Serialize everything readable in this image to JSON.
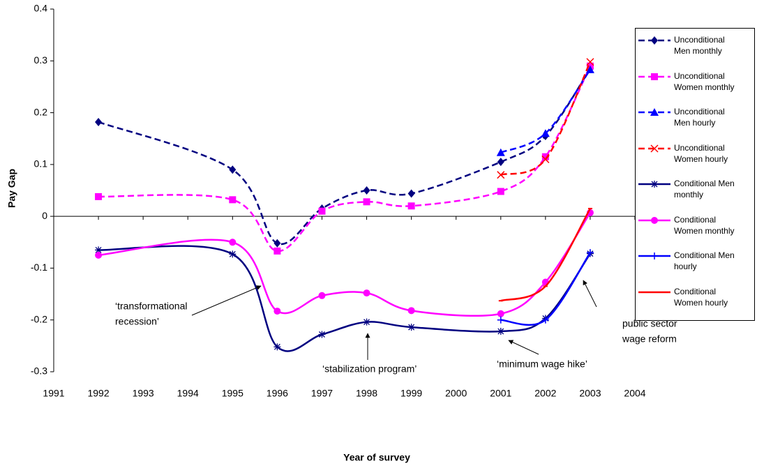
{
  "chart_data": {
    "type": "line",
    "x_label": "Year of survey",
    "y_label": "Pay Gap",
    "x": [
      1992,
      1995,
      1996,
      1997,
      1998,
      1999,
      2001,
      2002,
      2003
    ],
    "xlim": [
      1991,
      2004
    ],
    "xticks": [
      1991,
      1992,
      1993,
      1994,
      1995,
      1996,
      1997,
      1998,
      1999,
      2000,
      2001,
      2002,
      2003,
      2004
    ],
    "ylim": [
      -0.3,
      0.4
    ],
    "yticks": [
      0.4,
      0.3,
      0.2,
      0.1,
      0,
      -0.1,
      -0.2,
      -0.3
    ],
    "legend": "right",
    "smooth": true,
    "series": [
      {
        "name": "Unconditional Men monthly",
        "color": "#000080",
        "dashed": true,
        "marker": "diamond",
        "values": [
          0.182,
          0.09,
          -0.052,
          0.015,
          0.05,
          0.044,
          0.105,
          0.155,
          0.285
        ]
      },
      {
        "name": "Unconditional Women monthly",
        "color": "#ff00ff",
        "dashed": true,
        "marker": "square",
        "values": [
          0.038,
          0.032,
          -0.067,
          0.01,
          0.028,
          0.02,
          0.048,
          0.115,
          0.29
        ]
      },
      {
        "name": "Unconditional Men hourly",
        "color": "#0000ff",
        "dashed": true,
        "marker": "triangle",
        "values": [
          null,
          null,
          null,
          null,
          null,
          null,
          0.123,
          0.16,
          0.283
        ]
      },
      {
        "name": "Unconditional Women hourly",
        "color": "#ff0000",
        "dashed": true,
        "marker": "cross",
        "values": [
          null,
          null,
          null,
          null,
          null,
          null,
          0.08,
          0.11,
          0.298
        ]
      },
      {
        "name": "Conditional Men monthly",
        "color": "#000080",
        "dashed": false,
        "marker": "star",
        "values": [
          -0.065,
          -0.073,
          -0.252,
          -0.228,
          -0.204,
          -0.214,
          -0.222,
          -0.197,
          -0.072
        ]
      },
      {
        "name": "Conditional Women monthly",
        "color": "#ff00ff",
        "dashed": false,
        "marker": "circle",
        "values": [
          -0.075,
          -0.05,
          -0.183,
          -0.153,
          -0.148,
          -0.182,
          -0.188,
          -0.127,
          0.007
        ]
      },
      {
        "name": "Conditional Men hourly",
        "color": "#0000ff",
        "dashed": false,
        "marker": "plus",
        "values": [
          null,
          null,
          null,
          null,
          null,
          null,
          -0.2,
          -0.2,
          -0.07
        ]
      },
      {
        "name": "Conditional Women hourly",
        "color": "#ff0000",
        "dashed": false,
        "marker": "dash",
        "values": [
          null,
          null,
          null,
          null,
          null,
          null,
          -0.163,
          -0.135,
          0.015
        ]
      }
    ],
    "annotations": [
      {
        "lines": [
          "‘transformational",
          "recession’"
        ]
      },
      {
        "lines": [
          "‘stabilization program’"
        ]
      },
      {
        "lines": [
          "‘minimum wage hike’"
        ]
      },
      {
        "lines": [
          "public sector",
          "wage reform"
        ]
      }
    ]
  }
}
